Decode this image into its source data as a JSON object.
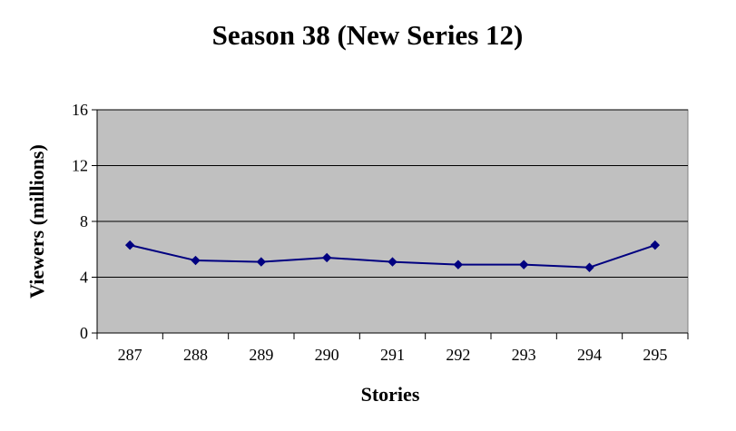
{
  "chart_data": {
    "type": "line",
    "title": "Season 38 (New Series 12)",
    "xlabel": "Stories",
    "ylabel": "Viewers (millions)",
    "categories": [
      "287",
      "288",
      "289",
      "290",
      "291",
      "292",
      "293",
      "294",
      "295"
    ],
    "series": [
      {
        "values": [
          6.3,
          5.2,
          5.1,
          5.4,
          5.1,
          4.9,
          4.9,
          4.7,
          6.3
        ]
      }
    ],
    "ylim": [
      0,
      16
    ],
    "yticks": [
      "0",
      "4",
      "8",
      "12",
      "16"
    ],
    "grid": true,
    "legend": "none",
    "colors": {
      "plot_background": "#c0c0c0",
      "line": "#000080",
      "marker": "#000080",
      "grid": "#000000"
    }
  }
}
